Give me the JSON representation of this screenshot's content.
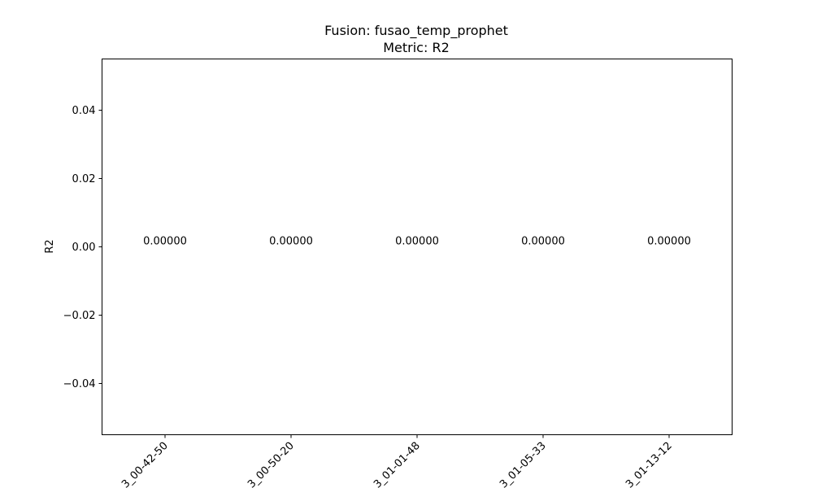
{
  "chart_data": {
    "type": "bar",
    "title": "Fusion: fusao_temp_prophet",
    "subtitle": "Metric: R2",
    "xlabel": "",
    "ylabel": "R2",
    "categories": [
      "_00-42-50",
      "_00-50-20",
      "_01-01-48",
      "_01-05-33",
      "_01-13-12"
    ],
    "categories_visible_prefix": [
      "3",
      "3",
      "3",
      "3",
      "3"
    ],
    "values": [
      0.0,
      0.0,
      0.0,
      0.0,
      0.0
    ],
    "data_labels": [
      "0.00000",
      "0.00000",
      "0.00000",
      "0.00000",
      "0.00000"
    ],
    "ylim": [
      -0.055,
      0.055
    ],
    "yticks": [
      -0.04,
      -0.02,
      0.0,
      0.02,
      0.04
    ],
    "ytick_labels": [
      "−0.04",
      "−0.02",
      "0.00",
      "0.02",
      "0.04"
    ],
    "grid": false,
    "legend": "none",
    "bar_color": "#1f77b4"
  }
}
